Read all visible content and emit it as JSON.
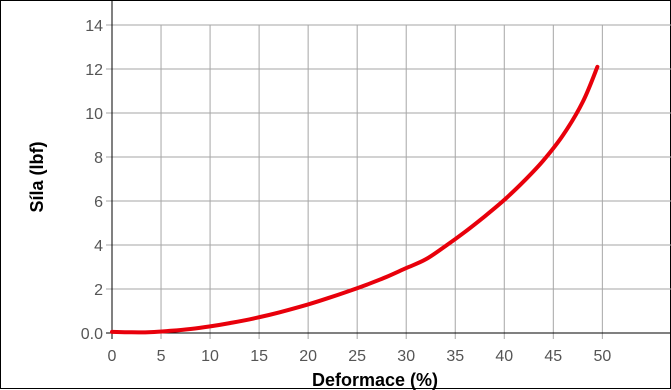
{
  "chart_data": {
    "type": "line",
    "xlabel": "Deformace (%)",
    "ylabel": "Síla (lbf)",
    "xlim": [
      0,
      57
    ],
    "ylim": [
      0,
      14
    ],
    "xticks": [
      0,
      5,
      10,
      15,
      20,
      25,
      30,
      35,
      40,
      45,
      50
    ],
    "yticks": [
      0.0,
      2,
      4,
      6,
      8,
      10,
      12,
      14
    ],
    "ytick_labels": [
      "0.0",
      "2",
      "4",
      "6",
      "8",
      "10",
      "12",
      "14"
    ],
    "grid": true,
    "series": [
      {
        "name": "",
        "color": "#e8000b",
        "x": [
          0,
          2,
          4,
          6,
          8,
          10,
          12,
          14,
          16,
          18,
          20,
          22,
          24,
          26,
          28,
          30,
          32,
          34,
          36,
          38,
          40,
          42,
          44,
          46,
          48,
          49.5
        ],
        "y": [
          0.05,
          0.03,
          0.04,
          0.1,
          0.18,
          0.3,
          0.45,
          0.62,
          0.82,
          1.05,
          1.3,
          1.58,
          1.88,
          2.2,
          2.55,
          2.95,
          3.35,
          3.95,
          4.6,
          5.3,
          6.05,
          6.9,
          7.85,
          9.0,
          10.5,
          12.1
        ]
      }
    ]
  }
}
